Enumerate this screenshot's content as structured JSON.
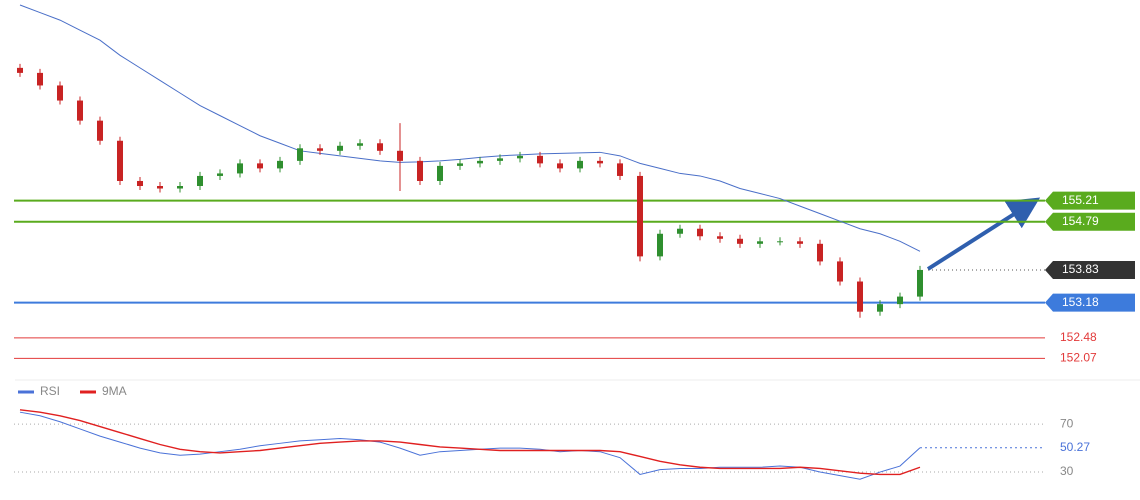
{
  "chart_data": [
    {
      "type": "candlestick",
      "ylim": [
        151.8,
        159.2
      ],
      "open": [
        157.85,
        157.75,
        157.5,
        157.2,
        156.8,
        156.4,
        155.6,
        155.5,
        155.45,
        155.5,
        155.7,
        155.75,
        155.95,
        155.85,
        156.0,
        156.25,
        156.2,
        156.3,
        156.35,
        156.2,
        156.0,
        155.6,
        155.9,
        155.95,
        156.0,
        156.05,
        156.1,
        155.95,
        155.85,
        156.0,
        155.95,
        155.7,
        154.1,
        154.55,
        154.65,
        154.5,
        154.45,
        154.35,
        154.4,
        154.4,
        154.35,
        154.0,
        153.6,
        153.0,
        153.15,
        153.3
      ],
      "high": [
        157.93,
        157.83,
        157.58,
        157.28,
        156.88,
        156.48,
        155.68,
        155.58,
        155.58,
        155.78,
        155.83,
        156.03,
        156.03,
        156.08,
        156.33,
        156.33,
        156.38,
        156.43,
        156.43,
        156.75,
        156.08,
        155.98,
        156.03,
        156.08,
        156.13,
        156.18,
        156.18,
        156.03,
        156.08,
        156.08,
        156.03,
        155.78,
        154.63,
        154.73,
        154.73,
        154.58,
        154.53,
        154.48,
        154.48,
        154.48,
        154.43,
        154.08,
        153.68,
        153.23,
        153.38,
        153.91
      ],
      "low": [
        157.67,
        157.42,
        157.12,
        156.72,
        156.32,
        155.52,
        155.42,
        155.37,
        155.37,
        155.42,
        155.62,
        155.67,
        155.77,
        155.77,
        155.92,
        156.12,
        156.12,
        156.22,
        156.12,
        155.4,
        155.52,
        155.52,
        155.82,
        155.87,
        155.92,
        155.97,
        155.87,
        155.77,
        155.77,
        155.87,
        155.62,
        154.0,
        154.02,
        154.47,
        154.42,
        154.37,
        154.27,
        154.27,
        154.32,
        154.27,
        153.92,
        153.52,
        152.88,
        152.92,
        153.07,
        153.22
      ],
      "close": [
        157.75,
        157.5,
        157.2,
        156.8,
        156.4,
        155.6,
        155.5,
        155.45,
        155.5,
        155.7,
        155.75,
        155.95,
        155.85,
        156.0,
        156.25,
        156.2,
        156.3,
        156.35,
        156.2,
        156.0,
        155.6,
        155.9,
        155.95,
        156.0,
        156.05,
        156.1,
        155.95,
        155.85,
        156.0,
        155.95,
        155.7,
        154.1,
        154.55,
        154.65,
        154.5,
        154.45,
        154.35,
        154.4,
        154.4,
        154.35,
        154.0,
        153.6,
        153.0,
        153.15,
        153.3,
        153.83
      ],
      "up_color": "#2f8f2f",
      "down_color": "#c82323",
      "ma": {
        "color": "#4a6fc8",
        "values": [
          159.1,
          158.95,
          158.8,
          158.6,
          158.4,
          158.1,
          157.85,
          157.6,
          157.35,
          157.1,
          156.9,
          156.7,
          156.5,
          156.35,
          156.2,
          156.15,
          156.1,
          156.05,
          156.0,
          155.97,
          155.98,
          156.0,
          156.03,
          156.07,
          156.1,
          156.12,
          156.14,
          156.15,
          156.16,
          156.17,
          156.1,
          155.95,
          155.85,
          155.75,
          155.7,
          155.6,
          155.45,
          155.35,
          155.25,
          155.1,
          154.95,
          154.8,
          154.65,
          154.55,
          154.4,
          154.2
        ]
      },
      "levels": [
        {
          "value": 155.21,
          "color": "#5aab1e",
          "boxed": true
        },
        {
          "value": 154.79,
          "color": "#5aab1e",
          "boxed": true
        },
        {
          "value": 153.18,
          "color": "#3d7bdc",
          "boxed": true
        },
        {
          "value": 152.48,
          "color": "#e23a3a",
          "boxed": false
        },
        {
          "value": 152.07,
          "color": "#e23a3a",
          "boxed": false
        }
      ],
      "current": {
        "value": 153.83,
        "color": "#333333"
      }
    },
    {
      "type": "line",
      "ylim": [
        15,
        86
      ],
      "yticks": [
        30,
        70
      ],
      "series": [
        {
          "name": "RSI",
          "color": "#4a72d8",
          "values": [
            80,
            77,
            72,
            66,
            60,
            55,
            50,
            46,
            44,
            45,
            47,
            49,
            52,
            54,
            56,
            57,
            58,
            57,
            55,
            50,
            44,
            47,
            48,
            49,
            50,
            50,
            49,
            47,
            48,
            47,
            42,
            28,
            32,
            33,
            33,
            34,
            34,
            34,
            35,
            34,
            30,
            27,
            24,
            30,
            35,
            50.27
          ]
        },
        {
          "name": "9MA",
          "color": "#e02020",
          "values": [
            82,
            80,
            77,
            73,
            68,
            63,
            58,
            53,
            49,
            47,
            46,
            47,
            48,
            50,
            52,
            54,
            55,
            56,
            56,
            55,
            53,
            51,
            50,
            49,
            48,
            48,
            48,
            48,
            48,
            48,
            47,
            43,
            39,
            36,
            34,
            33,
            33,
            33,
            33,
            34,
            33,
            31,
            29,
            28,
            28,
            34
          ]
        }
      ]
    }
  ]
}
